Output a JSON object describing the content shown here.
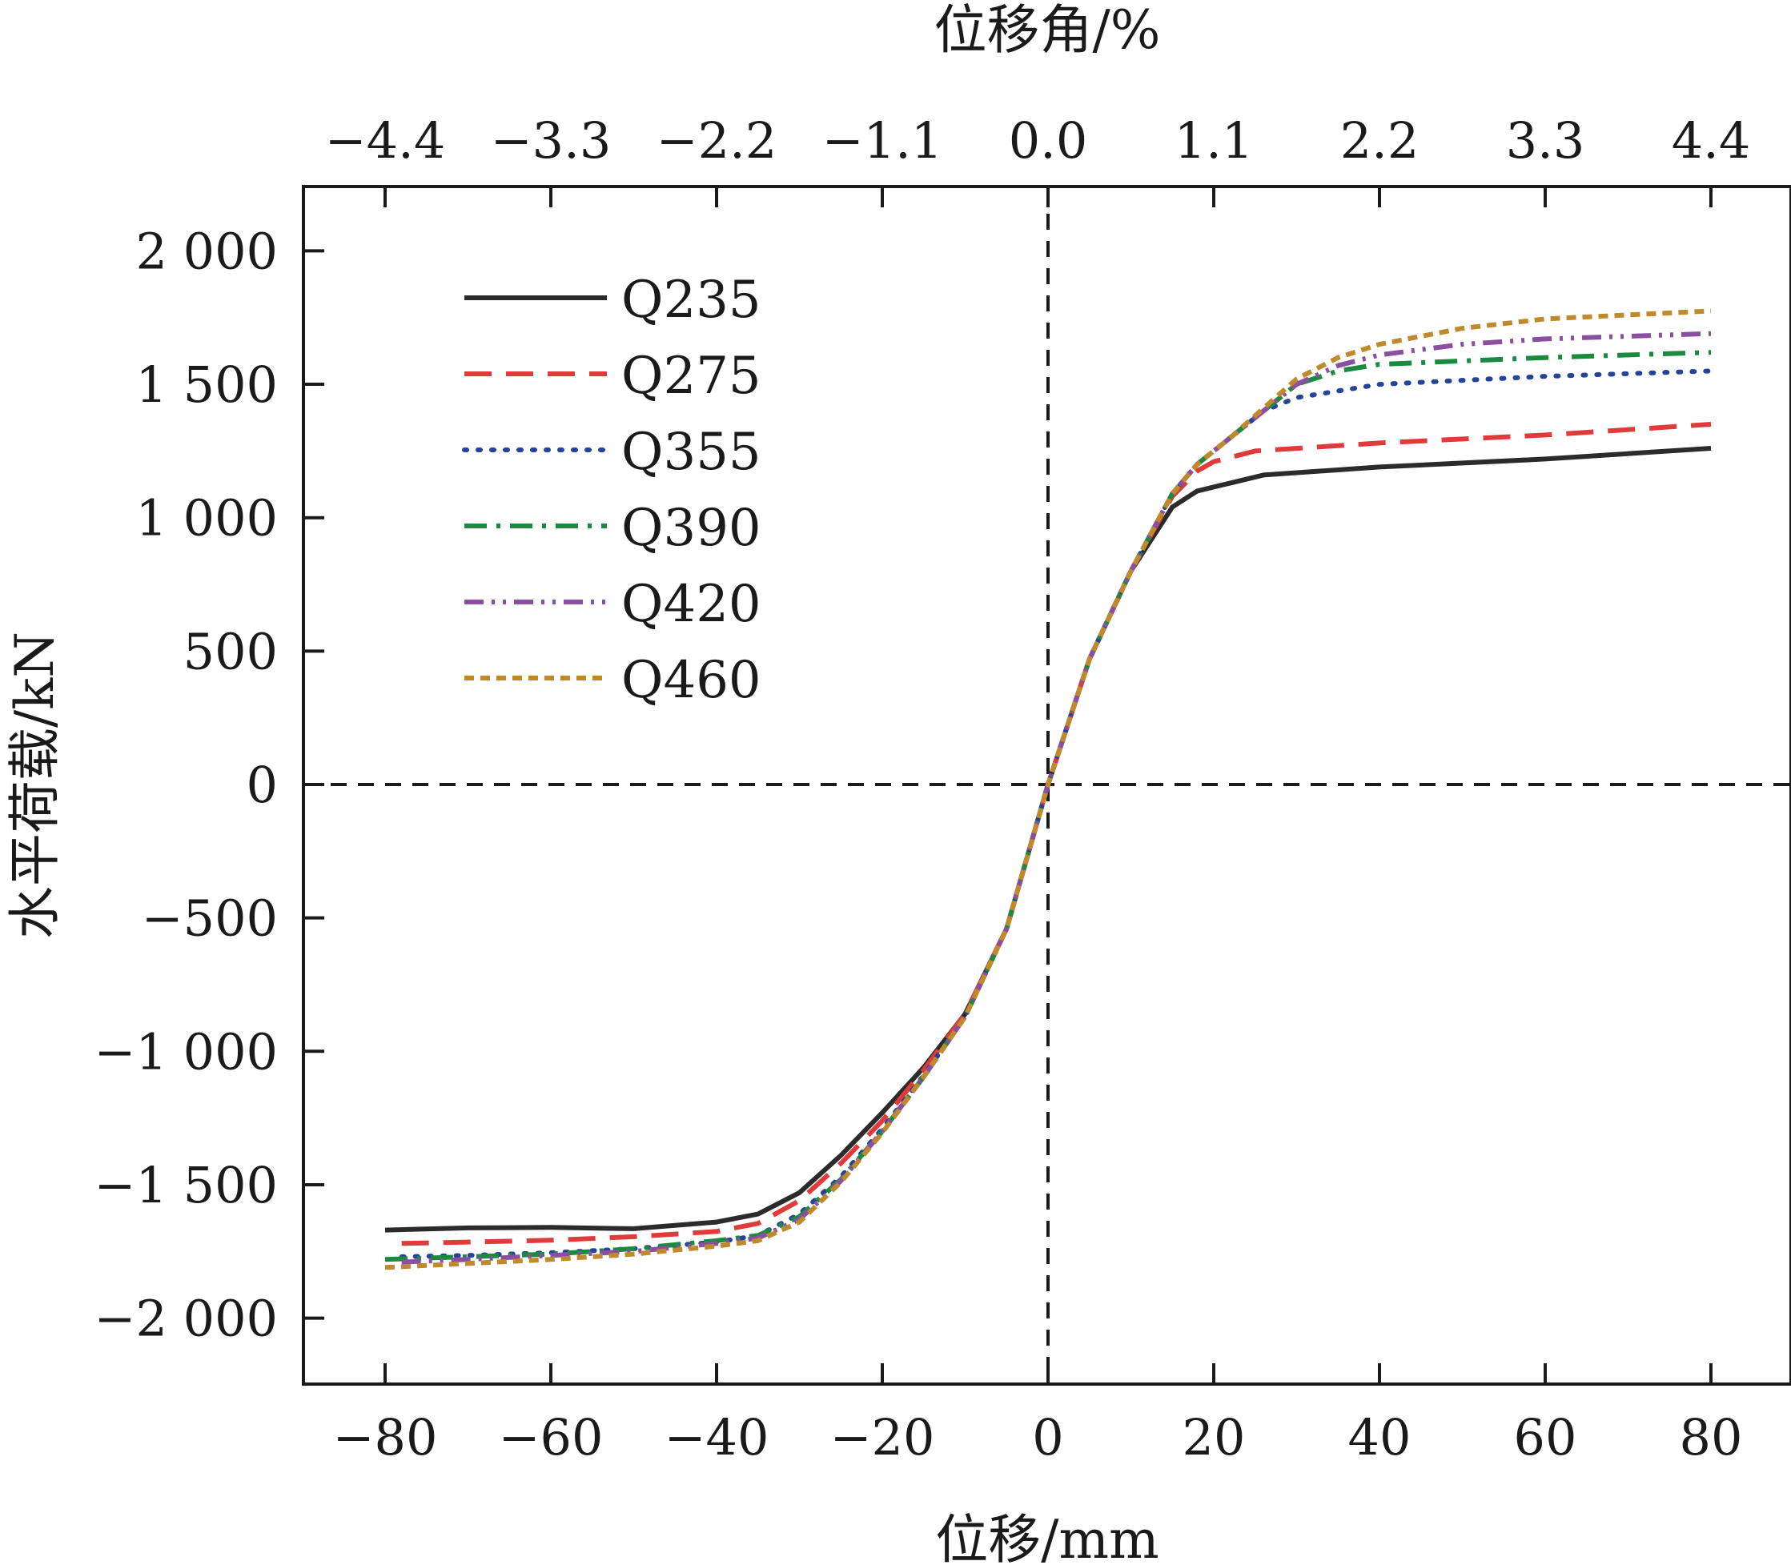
{
  "chart_data": {
    "type": "line",
    "title": "",
    "xlabel": "位移/mm",
    "x2label": "位移角/%",
    "ylabel": "水平荷载/kN",
    "xlim": [
      -90,
      90
    ],
    "ylim": [
      -2250,
      2250
    ],
    "x_ticks": [
      -80,
      -60,
      -40,
      -20,
      0,
      20,
      40,
      60,
      80
    ],
    "x_tick_labels": [
      "−80",
      "−60",
      "−40",
      "−20",
      "0",
      "20",
      "40",
      "60",
      "80"
    ],
    "x2_ticks": [
      -80,
      -60,
      -40,
      -20,
      0,
      20,
      40,
      60,
      80
    ],
    "x2_tick_labels": [
      "−4.4",
      "−3.3",
      "−2.2",
      "−1.1",
      "0.0",
      "1.1",
      "2.2",
      "3.3",
      "4.4"
    ],
    "y_ticks": [
      -2000,
      -1500,
      -1000,
      -500,
      0,
      500,
      1000,
      1500,
      2000
    ],
    "y_tick_labels": [
      "−2 000",
      "−1 500",
      "−1 000",
      "−500",
      "0",
      "500",
      "1 000",
      "1 500",
      "2 000"
    ],
    "grid": false,
    "reference_lines": "dashed lines at x = 0 and y = 0",
    "legend_position": "top-left",
    "series": [
      {
        "name": "Q235",
        "color": "#2b2b2b",
        "dash": "solid",
        "points": [
          [
            -80,
            -1670
          ],
          [
            -70,
            -1662
          ],
          [
            -60,
            -1660
          ],
          [
            -50,
            -1665
          ],
          [
            -40,
            -1640
          ],
          [
            -35,
            -1610
          ],
          [
            -30,
            -1530
          ],
          [
            -25,
            -1390
          ],
          [
            -20,
            -1230
          ],
          [
            -15,
            -1060
          ],
          [
            -10,
            -860
          ],
          [
            -5,
            -540
          ],
          [
            0,
            0
          ],
          [
            5,
            470
          ],
          [
            10,
            800
          ],
          [
            15,
            1040
          ],
          [
            18,
            1100
          ],
          [
            22,
            1130
          ],
          [
            26,
            1160
          ],
          [
            40,
            1190
          ],
          [
            60,
            1220
          ],
          [
            80,
            1260
          ]
        ]
      },
      {
        "name": "Q275",
        "color": "#e03a3a",
        "dash": "long-dash",
        "points": [
          [
            -78,
            -1720
          ],
          [
            -70,
            -1715
          ],
          [
            -60,
            -1708
          ],
          [
            -50,
            -1695
          ],
          [
            -40,
            -1675
          ],
          [
            -35,
            -1645
          ],
          [
            -30,
            -1560
          ],
          [
            -25,
            -1420
          ],
          [
            -20,
            -1260
          ],
          [
            -15,
            -1070
          ],
          [
            -10,
            -860
          ],
          [
            -5,
            -540
          ],
          [
            0,
            0
          ],
          [
            5,
            470
          ],
          [
            10,
            800
          ],
          [
            15,
            1080
          ],
          [
            18,
            1175
          ],
          [
            20,
            1210
          ],
          [
            25,
            1250
          ],
          [
            40,
            1280
          ],
          [
            60,
            1310
          ],
          [
            80,
            1350
          ]
        ]
      },
      {
        "name": "Q355",
        "color": "#24449a",
        "dash": "dotted",
        "points": [
          [
            -78,
            -1770
          ],
          [
            -70,
            -1765
          ],
          [
            -60,
            -1755
          ],
          [
            -50,
            -1740
          ],
          [
            -40,
            -1715
          ],
          [
            -35,
            -1690
          ],
          [
            -30,
            -1610
          ],
          [
            -25,
            -1470
          ],
          [
            -20,
            -1290
          ],
          [
            -15,
            -1090
          ],
          [
            -10,
            -870
          ],
          [
            -5,
            -540
          ],
          [
            0,
            0
          ],
          [
            5,
            470
          ],
          [
            10,
            800
          ],
          [
            15,
            1090
          ],
          [
            18,
            1200
          ],
          [
            22,
            1300
          ],
          [
            26,
            1400
          ],
          [
            30,
            1450
          ],
          [
            40,
            1500
          ],
          [
            60,
            1530
          ],
          [
            80,
            1550
          ]
        ]
      },
      {
        "name": "Q390",
        "color": "#1a8a3e",
        "dash": "dash-dot",
        "points": [
          [
            -80,
            -1780
          ],
          [
            -70,
            -1770
          ],
          [
            -60,
            -1760
          ],
          [
            -50,
            -1740
          ],
          [
            -40,
            -1710
          ],
          [
            -35,
            -1690
          ],
          [
            -30,
            -1620
          ],
          [
            -25,
            -1480
          ],
          [
            -20,
            -1300
          ],
          [
            -15,
            -1095
          ],
          [
            -10,
            -870
          ],
          [
            -5,
            -540
          ],
          [
            0,
            0
          ],
          [
            5,
            470
          ],
          [
            10,
            800
          ],
          [
            15,
            1090
          ],
          [
            18,
            1200
          ],
          [
            22,
            1300
          ],
          [
            26,
            1400
          ],
          [
            30,
            1500
          ],
          [
            35,
            1550
          ],
          [
            40,
            1575
          ],
          [
            60,
            1600
          ],
          [
            80,
            1620
          ]
        ]
      },
      {
        "name": "Q420",
        "color": "#8a4fa0",
        "dash": "dash-dot-dot",
        "points": [
          [
            -78,
            -1790
          ],
          [
            -70,
            -1780
          ],
          [
            -60,
            -1765
          ],
          [
            -50,
            -1750
          ],
          [
            -40,
            -1720
          ],
          [
            -35,
            -1700
          ],
          [
            -30,
            -1630
          ],
          [
            -25,
            -1485
          ],
          [
            -20,
            -1300
          ],
          [
            -15,
            -1095
          ],
          [
            -10,
            -870
          ],
          [
            -5,
            -540
          ],
          [
            0,
            0
          ],
          [
            5,
            470
          ],
          [
            10,
            800
          ],
          [
            15,
            1090
          ],
          [
            18,
            1200
          ],
          [
            22,
            1300
          ],
          [
            26,
            1400
          ],
          [
            30,
            1500
          ],
          [
            35,
            1570
          ],
          [
            40,
            1610
          ],
          [
            50,
            1650
          ],
          [
            60,
            1670
          ],
          [
            80,
            1690
          ]
        ]
      },
      {
        "name": "Q460",
        "color": "#c08a2c",
        "dash": "short-dash",
        "points": [
          [
            -80,
            -1810
          ],
          [
            -70,
            -1795
          ],
          [
            -60,
            -1780
          ],
          [
            -50,
            -1760
          ],
          [
            -40,
            -1730
          ],
          [
            -35,
            -1710
          ],
          [
            -30,
            -1640
          ],
          [
            -25,
            -1490
          ],
          [
            -20,
            -1305
          ],
          [
            -15,
            -1095
          ],
          [
            -10,
            -870
          ],
          [
            -5,
            -540
          ],
          [
            0,
            0
          ],
          [
            5,
            470
          ],
          [
            10,
            800
          ],
          [
            15,
            1090
          ],
          [
            18,
            1200
          ],
          [
            22,
            1300
          ],
          [
            26,
            1410
          ],
          [
            30,
            1520
          ],
          [
            35,
            1600
          ],
          [
            40,
            1650
          ],
          [
            50,
            1710
          ],
          [
            60,
            1745
          ],
          [
            80,
            1775
          ]
        ]
      }
    ]
  }
}
